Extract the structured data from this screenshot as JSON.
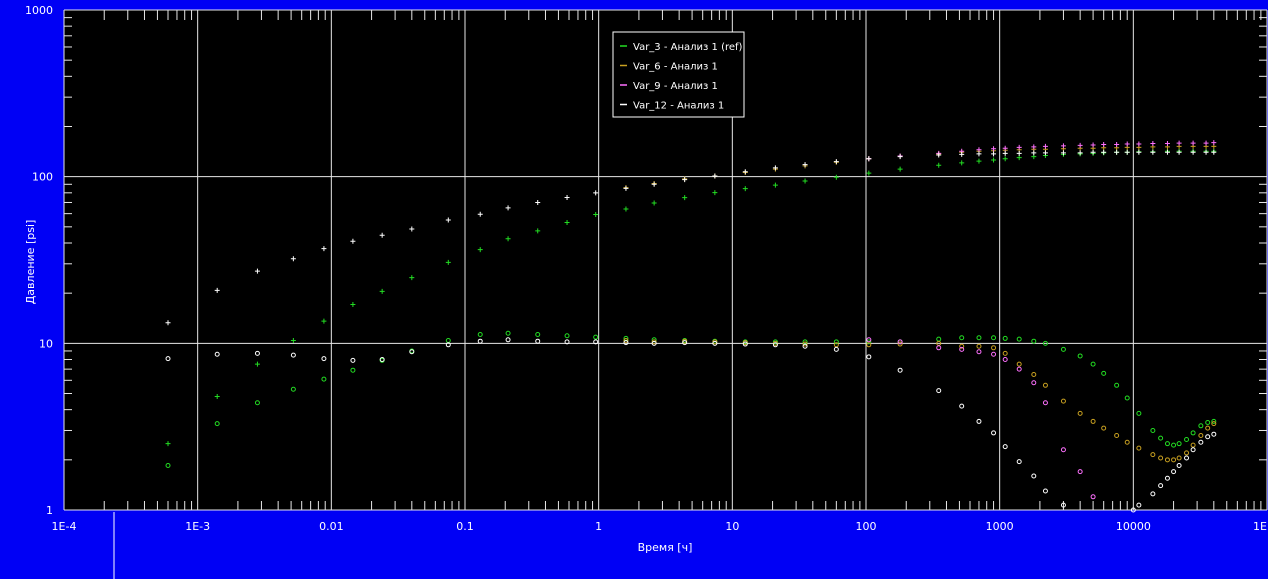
{
  "chart_data": {
    "type": "scatter",
    "x_scale": "log",
    "y_scale": "log",
    "xlim": [
      0.0001,
      100000
    ],
    "ylim": [
      1,
      1000
    ],
    "xlabel": "Время  [ч]",
    "ylabel": "Давление [psi]",
    "x_tick_labels": [
      "1E-4",
      "1E-3",
      "0.01",
      "0.1",
      "1",
      "10",
      "100",
      "1000",
      "10000",
      "1E"
    ],
    "y_tick_labels": [
      "1",
      "10",
      "100",
      "1000"
    ],
    "grid": true,
    "legend_position": "top-center",
    "colors": {
      "background": "#000000",
      "frame": "#0000f5",
      "grid": "#e8e8e8",
      "var3": "#22dd22",
      "var6": "#c8a020",
      "var9": "#ff70ff",
      "var12": "#ffffff"
    },
    "series": [
      {
        "name": "Var_3 - Анализ 1 (ref)",
        "color_key": "var3",
        "pressure": [
          [
            0.0006,
            2.5
          ],
          [
            0.0014,
            4.8
          ],
          [
            0.0028,
            7.5
          ],
          [
            0.0052,
            10.4
          ],
          [
            0.0088,
            13.6
          ],
          [
            0.0145,
            17.1
          ],
          [
            0.024,
            20.5
          ],
          [
            0.04,
            24.8
          ],
          [
            0.075,
            30.6
          ],
          [
            0.13,
            36.5
          ],
          [
            0.21,
            42.4
          ],
          [
            0.35,
            47.3
          ],
          [
            0.58,
            53.1
          ],
          [
            0.95,
            59.3
          ],
          [
            1.6,
            64.0
          ],
          [
            2.6,
            69.5
          ],
          [
            4.4,
            74.8
          ],
          [
            7.4,
            80.2
          ],
          [
            12.5,
            84.7
          ],
          [
            21,
            89.0
          ],
          [
            35,
            94.2
          ],
          [
            60,
            99.2
          ],
          [
            105,
            105
          ],
          [
            180,
            111
          ],
          [
            350,
            117
          ],
          [
            520,
            121
          ],
          [
            700,
            124
          ],
          [
            900,
            126
          ],
          [
            1100,
            128
          ],
          [
            1400,
            130
          ],
          [
            1800,
            132
          ],
          [
            2200,
            134
          ],
          [
            3000,
            136
          ],
          [
            4000,
            137
          ],
          [
            5000,
            138
          ],
          [
            6000,
            139
          ],
          [
            7500,
            140
          ],
          [
            9000,
            140
          ],
          [
            11000,
            141
          ],
          [
            14000,
            141
          ],
          [
            18000,
            142
          ],
          [
            22000,
            142
          ],
          [
            28000,
            142
          ],
          [
            35000,
            142
          ],
          [
            40000,
            142
          ]
        ],
        "derivative": [
          [
            0.0006,
            1.85
          ],
          [
            0.0014,
            3.3
          ],
          [
            0.0028,
            4.4
          ],
          [
            0.0052,
            5.3
          ],
          [
            0.0088,
            6.1
          ],
          [
            0.0145,
            6.9
          ],
          [
            0.024,
            7.9
          ],
          [
            0.04,
            9.0
          ],
          [
            0.075,
            10.4
          ],
          [
            0.13,
            11.3
          ],
          [
            0.21,
            11.5
          ],
          [
            0.35,
            11.3
          ],
          [
            0.58,
            11.1
          ],
          [
            0.95,
            10.9
          ],
          [
            1.6,
            10.7
          ],
          [
            2.6,
            10.5
          ],
          [
            4.4,
            10.4
          ],
          [
            7.4,
            10.3
          ],
          [
            12.5,
            10.2
          ],
          [
            21,
            10.2
          ],
          [
            35,
            10.2
          ],
          [
            60,
            10.2
          ],
          [
            105,
            10.2
          ],
          [
            180,
            10.2
          ],
          [
            350,
            10.6
          ],
          [
            520,
            10.8
          ],
          [
            700,
            10.8
          ],
          [
            900,
            10.8
          ],
          [
            1100,
            10.7
          ],
          [
            1400,
            10.6
          ],
          [
            1800,
            10.3
          ],
          [
            2200,
            10.0
          ],
          [
            3000,
            9.2
          ],
          [
            4000,
            8.4
          ],
          [
            5000,
            7.5
          ],
          [
            6000,
            6.6
          ],
          [
            7500,
            5.6
          ],
          [
            9000,
            4.7
          ],
          [
            11000,
            3.8
          ],
          [
            14000,
            3.0
          ],
          [
            16000,
            2.7
          ],
          [
            18000,
            2.5
          ],
          [
            20000,
            2.45
          ],
          [
            22000,
            2.5
          ],
          [
            25000,
            2.65
          ],
          [
            28000,
            2.9
          ],
          [
            32000,
            3.2
          ],
          [
            36000,
            3.35
          ],
          [
            40000,
            3.4
          ]
        ]
      },
      {
        "name": "Var_6 - Анализ 1",
        "color_key": "var6",
        "pressure": [
          [
            1.6,
            86
          ],
          [
            2.6,
            91
          ],
          [
            4.4,
            97
          ],
          [
            7.4,
            101
          ],
          [
            12.5,
            106
          ],
          [
            21,
            111
          ],
          [
            35,
            116
          ],
          [
            60,
            122
          ],
          [
            105,
            128
          ],
          [
            180,
            133
          ],
          [
            350,
            137
          ],
          [
            520,
            140
          ],
          [
            700,
            142
          ],
          [
            900,
            143
          ],
          [
            1100,
            144
          ],
          [
            1400,
            145
          ],
          [
            1800,
            146
          ],
          [
            2200,
            146
          ],
          [
            3000,
            147
          ],
          [
            4000,
            148
          ],
          [
            5000,
            148
          ],
          [
            6000,
            149
          ],
          [
            7500,
            149
          ],
          [
            9000,
            150
          ],
          [
            11000,
            150
          ],
          [
            14000,
            151
          ],
          [
            18000,
            151
          ],
          [
            22000,
            152
          ],
          [
            28000,
            152
          ],
          [
            35000,
            152
          ],
          [
            40000,
            152
          ]
        ],
        "derivative": [
          [
            1.6,
            10.4
          ],
          [
            2.6,
            10.2
          ],
          [
            4.4,
            10.3
          ],
          [
            7.4,
            10.2
          ],
          [
            12.5,
            10.1
          ],
          [
            21,
            10.0
          ],
          [
            35,
            9.9
          ],
          [
            60,
            9.8
          ],
          [
            105,
            9.8
          ],
          [
            180,
            9.9
          ],
          [
            350,
            10.0
          ],
          [
            520,
            9.6
          ],
          [
            700,
            9.6
          ],
          [
            900,
            9.4
          ],
          [
            1100,
            8.7
          ],
          [
            1400,
            7.5
          ],
          [
            1800,
            6.5
          ],
          [
            2200,
            5.6
          ],
          [
            3000,
            4.5
          ],
          [
            4000,
            3.8
          ],
          [
            5000,
            3.4
          ],
          [
            6000,
            3.1
          ],
          [
            7500,
            2.8
          ],
          [
            9000,
            2.55
          ],
          [
            11000,
            2.35
          ],
          [
            14000,
            2.15
          ],
          [
            16000,
            2.05
          ],
          [
            18000,
            2.0
          ],
          [
            20000,
            2.0
          ],
          [
            22000,
            2.05
          ],
          [
            25000,
            2.2
          ],
          [
            28000,
            2.45
          ],
          [
            32000,
            2.8
          ],
          [
            36000,
            3.1
          ],
          [
            40000,
            3.3
          ]
        ]
      },
      {
        "name": "Var_9 - Анализ 1",
        "color_key": "var9",
        "pressure": [
          [
            105,
            128
          ],
          [
            180,
            133
          ],
          [
            350,
            138
          ],
          [
            520,
            142
          ],
          [
            700,
            145
          ],
          [
            900,
            147
          ],
          [
            1100,
            148
          ],
          [
            1400,
            150
          ],
          [
            1800,
            151
          ],
          [
            2200,
            152
          ],
          [
            3000,
            153
          ],
          [
            4000,
            154
          ],
          [
            5000,
            155
          ],
          [
            6000,
            156
          ],
          [
            7500,
            156
          ],
          [
            9000,
            157
          ],
          [
            11000,
            157
          ],
          [
            14000,
            158
          ],
          [
            18000,
            158
          ],
          [
            22000,
            159
          ],
          [
            28000,
            159
          ],
          [
            35000,
            159
          ],
          [
            40000,
            160
          ]
        ],
        "derivative": [
          [
            105,
            10.5
          ],
          [
            180,
            10.2
          ],
          [
            350,
            9.4
          ],
          [
            520,
            9.2
          ],
          [
            700,
            8.9
          ],
          [
            900,
            8.6
          ],
          [
            1100,
            8.0
          ],
          [
            1400,
            7.0
          ],
          [
            1800,
            5.8
          ],
          [
            2200,
            4.4
          ],
          [
            3000,
            2.3
          ],
          [
            4000,
            1.7
          ],
          [
            5000,
            1.2
          ]
        ]
      },
      {
        "name": "Var_12 - Анализ 1",
        "color_key": "var12",
        "pressure": [
          [
            0.0006,
            13.3
          ],
          [
            0.0014,
            20.8
          ],
          [
            0.0028,
            27.1
          ],
          [
            0.0052,
            32.2
          ],
          [
            0.0088,
            37.0
          ],
          [
            0.0145,
            41.0
          ],
          [
            0.024,
            44.5
          ],
          [
            0.04,
            48.5
          ],
          [
            0.075,
            55.0
          ],
          [
            0.13,
            59.5
          ],
          [
            0.21,
            65.0
          ],
          [
            0.35,
            70.0
          ],
          [
            0.58,
            75.0
          ],
          [
            0.95,
            80.0
          ],
          [
            1.6,
            85.0
          ],
          [
            2.6,
            90.0
          ],
          [
            4.4,
            96.0
          ],
          [
            7.4,
            101
          ],
          [
            12.5,
            107
          ],
          [
            21,
            113
          ],
          [
            35,
            118
          ],
          [
            60,
            123
          ],
          [
            105,
            128
          ],
          [
            180,
            132
          ],
          [
            350,
            135
          ],
          [
            520,
            136
          ],
          [
            700,
            137
          ],
          [
            900,
            137
          ],
          [
            1100,
            138
          ],
          [
            1400,
            138
          ],
          [
            1800,
            139
          ],
          [
            2200,
            139
          ],
          [
            3000,
            139
          ],
          [
            4000,
            139
          ],
          [
            5000,
            140
          ],
          [
            6000,
            140
          ],
          [
            7500,
            140
          ],
          [
            9000,
            140
          ],
          [
            11000,
            140
          ],
          [
            14000,
            140
          ],
          [
            18000,
            140
          ],
          [
            22000,
            140
          ],
          [
            28000,
            140
          ],
          [
            35000,
            140
          ],
          [
            40000,
            140
          ]
        ],
        "derivative": [
          [
            0.0006,
            8.1
          ],
          [
            0.0014,
            8.6
          ],
          [
            0.0028,
            8.7
          ],
          [
            0.0052,
            8.5
          ],
          [
            0.0088,
            8.1
          ],
          [
            0.0145,
            7.9
          ],
          [
            0.024,
            8.0
          ],
          [
            0.04,
            8.9
          ],
          [
            0.075,
            9.8
          ],
          [
            0.13,
            10.3
          ],
          [
            0.21,
            10.5
          ],
          [
            0.35,
            10.3
          ],
          [
            0.58,
            10.2
          ],
          [
            0.95,
            10.2
          ],
          [
            1.6,
            10.1
          ],
          [
            2.6,
            10.0
          ],
          [
            4.4,
            10.1
          ],
          [
            7.4,
            10.0
          ],
          [
            12.5,
            9.9
          ],
          [
            21,
            9.8
          ],
          [
            35,
            9.6
          ],
          [
            60,
            9.2
          ],
          [
            105,
            8.3
          ],
          [
            180,
            6.9
          ],
          [
            350,
            5.2
          ],
          [
            520,
            4.2
          ],
          [
            700,
            3.4
          ],
          [
            900,
            2.9
          ],
          [
            1100,
            2.4
          ],
          [
            1400,
            1.95
          ],
          [
            1800,
            1.6
          ],
          [
            2200,
            1.3
          ],
          [
            3000,
            1.07
          ],
          [
            10000,
            1.0
          ],
          [
            11000,
            1.07
          ],
          [
            14000,
            1.25
          ],
          [
            16000,
            1.4
          ],
          [
            18000,
            1.55
          ],
          [
            20000,
            1.7
          ],
          [
            22000,
            1.85
          ],
          [
            25000,
            2.05
          ],
          [
            28000,
            2.3
          ],
          [
            32000,
            2.55
          ],
          [
            36000,
            2.75
          ],
          [
            40000,
            2.85
          ]
        ]
      }
    ]
  }
}
